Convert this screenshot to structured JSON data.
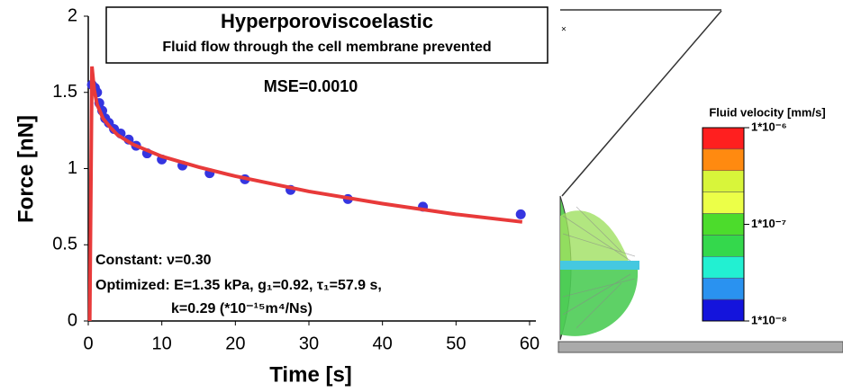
{
  "chart_data": {
    "type": "line",
    "title": "Hyperporoviscoelastic",
    "subtitle": "Fluid flow through the cell membrane prevented",
    "annotations": [
      "MSE=0.0010",
      "Constant:   ν=0.30",
      "Optimized: E=1.35 kPa, g₁=0.92, τ₁=57.9 s,",
      "k=0.29 (*10⁻¹⁵m⁴/Ns)"
    ],
    "x_label": "Time [s]",
    "y_label": "Force [nN]",
    "xlim": [
      0,
      60
    ],
    "xticks": [
      0,
      10,
      20,
      30,
      40,
      50,
      60
    ],
    "ylim": [
      0,
      2
    ],
    "yticks": [
      0,
      0.5,
      1,
      1.5,
      2
    ],
    "series": [
      {
        "color": "#3535e0",
        "style": "markers",
        "x": [
          0.5,
          0.9,
          1.2,
          1.5,
          1.9,
          2.3,
          2.8,
          3.5,
          4.4,
          5.5,
          6.5,
          8,
          10,
          12.8,
          16.5,
          21.3,
          27.5,
          35.3,
          45.5,
          58.8
        ],
        "values": [
          1.55,
          1.53,
          1.5,
          1.43,
          1.38,
          1.33,
          1.3,
          1.26,
          1.23,
          1.19,
          1.15,
          1.1,
          1.06,
          1.02,
          0.97,
          0.93,
          0.86,
          0.8,
          0.75,
          0.7
        ]
      },
      {
        "color": "#e83a3a",
        "style": "line",
        "x": [
          0.2,
          0.5,
          0.8,
          1.2,
          2,
          3,
          4,
          6,
          8,
          10,
          15,
          20,
          25,
          30,
          40,
          50,
          59
        ],
        "values": [
          0,
          1.67,
          1.52,
          1.42,
          1.33,
          1.27,
          1.22,
          1.16,
          1.12,
          1.08,
          1.01,
          0.95,
          0.9,
          0.85,
          0.77,
          0.7,
          0.65
        ]
      }
    ],
    "colorbar": {
      "title": "Fluid velocity [mm/s]",
      "labels": [
        "1*10⁻⁶",
        "1*10⁻⁷",
        "1*10⁻⁸"
      ],
      "colors": [
        "#ff1f1f",
        "#ff8a10",
        "#d8f53a",
        "#ecff48",
        "#4cdc2c",
        "#34d84c",
        "#22f0d2",
        "#2a92f0",
        "#1414dc"
      ]
    }
  }
}
